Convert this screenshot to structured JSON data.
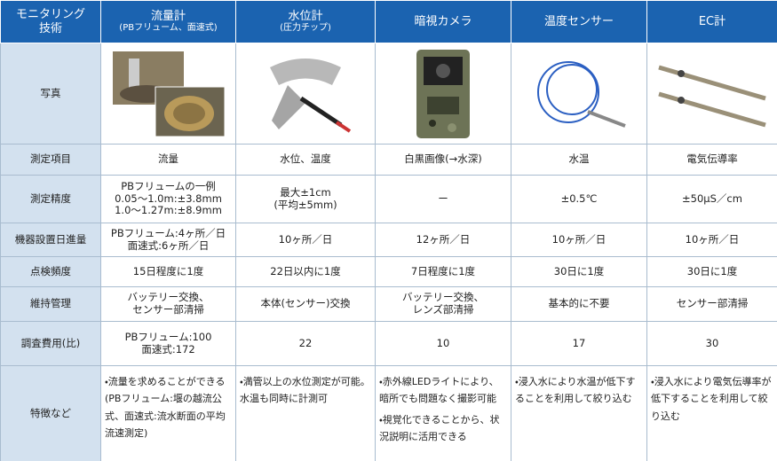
{
  "table": {
    "columns": [
      {
        "name": "モニタリング\n技術"
      },
      {
        "name": "流量計",
        "sub": "(PBフリューム、面速式)"
      },
      {
        "name": "水位計",
        "sub": "(圧力チップ)"
      },
      {
        "name": "暗視カメラ"
      },
      {
        "name": "温度センサー"
      },
      {
        "name": "EC計"
      }
    ],
    "photo_label": "写真",
    "rows": [
      {
        "label": "測定項目",
        "cells": [
          "流量",
          "水位、温度",
          "白黒画像(→水深)",
          "水温",
          "電気伝導率"
        ]
      },
      {
        "label": "測定精度",
        "cells": [
          "PBフリュームの一例\n0.05～1.0m:±3.8mm\n1.0～1.27m:±8.9mm",
          "最大±1cm\n(平均±5mm)",
          "ー",
          "±0.5℃",
          "±50μS／cm"
        ]
      },
      {
        "label": "機器設置日進量",
        "cells": [
          "PBフリューム:4ヶ所／日\n面速式:6ヶ所／日",
          "10ヶ所／日",
          "12ヶ所／日",
          "10ヶ所／日",
          "10ヶ所／日"
        ]
      },
      {
        "label": "点検頻度",
        "cells": [
          "15日程度に1度",
          "22日以内に1度",
          "7日程度に1度",
          "30日に1度",
          "30日に1度"
        ]
      },
      {
        "label": "維持管理",
        "cells": [
          "バッテリー交換、\nセンサー部清掃",
          "本体(センサー)交換",
          "バッテリー交換、\nレンズ部清掃",
          "基本的に不要",
          "センサー部清掃"
        ]
      },
      {
        "label": "調査費用(比)",
        "cells": [
          "PBフリューム:100\n面速式:172",
          22,
          10,
          17,
          30
        ]
      }
    ],
    "features": {
      "label": "特徴など",
      "cells": [
        [
          "・流量を求めることができる(PBフリューム:堰の越流公式、面速式:流水断面の平均流速測定)"
        ],
        [
          "・満管以上の水位測定が可能。水温も同時に計測可"
        ],
        [
          "・赤外線LEDライトにより、暗所でも問題なく撮影可能",
          "・視覚化できることから、状況説明に活用できる"
        ],
        [
          "・浸入水により水温が低下することを利用して絞り込む"
        ],
        [
          "・浸入水により電気伝導率が低下することを利用して絞り込む"
        ]
      ]
    }
  }
}
